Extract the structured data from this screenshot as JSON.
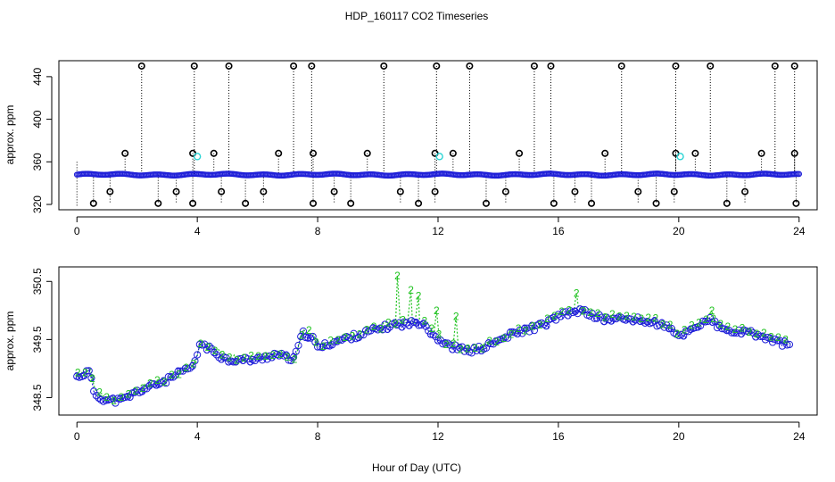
{
  "chart_data": [
    {
      "type": "scatter",
      "title": "HDP_160117  CO2 Timeseries",
      "xlabel": "",
      "ylabel": "approx. ppm",
      "xlim": [
        -0.6,
        24.6
      ],
      "ylim": [
        315,
        455
      ],
      "x_ticks": [
        0,
        4,
        8,
        12,
        16,
        20,
        24
      ],
      "y_ticks": [
        320,
        360,
        400,
        440
      ],
      "grid": false,
      "colors": {
        "baseline": "#1f1fd8",
        "spike": "#000000",
        "highlight": "#2ad4d4",
        "connector": "#000000"
      },
      "baseline_segments": [
        {
          "x": [
            0.0,
            24.0
          ],
          "y": [
            348,
            348
          ]
        }
      ],
      "high_spikes": [
        2.15,
        3.9,
        5.05,
        7.2,
        7.8,
        10.2,
        11.95,
        13.05,
        15.2,
        15.75,
        18.1,
        19.9,
        21.05,
        23.2,
        23.85
      ],
      "mid_spikes": [
        1.6,
        3.85,
        4.55,
        6.7,
        7.85,
        9.65,
        11.9,
        12.5,
        14.7,
        17.55,
        19.9,
        20.55,
        22.75,
        23.85
      ],
      "low_spikes": [
        0.55,
        1.1,
        2.7,
        3.3,
        3.85,
        4.8,
        5.6,
        6.2,
        7.85,
        8.55,
        9.1,
        10.75,
        11.35,
        11.9,
        13.6,
        14.25,
        15.85,
        16.55,
        17.1,
        18.65,
        19.25,
        19.85,
        21.6,
        22.2,
        23.9
      ],
      "spike_values": {
        "high": 450,
        "mid": 368,
        "low_upper": 332,
        "low_lower": 321
      },
      "highlight_points": [
        {
          "x": 4.0,
          "y": 365
        },
        {
          "x": 12.05,
          "y": 365
        },
        {
          "x": 20.05,
          "y": 365
        }
      ]
    },
    {
      "type": "scatter",
      "title": "",
      "xlabel": "Hour of Day (UTC)",
      "ylabel": "approx. ppm",
      "xlim": [
        -0.6,
        24.6
      ],
      "ylim": [
        348.2,
        350.75
      ],
      "x_ticks": [
        0,
        4,
        8,
        12,
        16,
        20,
        24
      ],
      "y_ticks": [
        348.5,
        349.5,
        350.5
      ],
      "grid": false,
      "series": [
        {
          "name": "3",
          "color": "#1f1fd8",
          "marker": "circle-and-label"
        },
        {
          "name": "2",
          "color": "#22c322",
          "marker": "label"
        }
      ],
      "trend_knots": [
        [
          0.0,
          348.85
        ],
        [
          0.4,
          348.95
        ],
        [
          0.6,
          348.55
        ],
        [
          1.0,
          348.45
        ],
        [
          1.5,
          348.45
        ],
        [
          2.0,
          348.6
        ],
        [
          3.0,
          348.8
        ],
        [
          3.9,
          349.05
        ],
        [
          4.1,
          349.45
        ],
        [
          4.5,
          349.3
        ],
        [
          5.0,
          349.15
        ],
        [
          6.0,
          349.15
        ],
        [
          6.6,
          349.25
        ],
        [
          7.2,
          349.15
        ],
        [
          7.5,
          349.6
        ],
        [
          7.8,
          349.55
        ],
        [
          8.0,
          349.35
        ],
        [
          8.5,
          349.45
        ],
        [
          9.5,
          349.6
        ],
        [
          10.5,
          349.75
        ],
        [
          11.5,
          349.8
        ],
        [
          11.8,
          349.6
        ],
        [
          12.3,
          349.4
        ],
        [
          13.0,
          349.3
        ],
        [
          13.5,
          349.35
        ],
        [
          14.5,
          349.6
        ],
        [
          15.5,
          349.75
        ],
        [
          16.0,
          349.9
        ],
        [
          16.7,
          350.0
        ],
        [
          17.5,
          349.85
        ],
        [
          18.5,
          349.85
        ],
        [
          19.5,
          349.75
        ],
        [
          20.0,
          349.55
        ],
        [
          20.5,
          349.7
        ],
        [
          21.0,
          349.85
        ],
        [
          21.5,
          349.65
        ],
        [
          22.5,
          349.6
        ],
        [
          23.0,
          349.5
        ],
        [
          23.7,
          349.4
        ]
      ],
      "series2_spikes": [
        {
          "x": 10.65,
          "y": 350.6
        },
        {
          "x": 11.1,
          "y": 350.35
        },
        {
          "x": 11.35,
          "y": 350.25
        },
        {
          "x": 11.95,
          "y": 350.0
        },
        {
          "x": 12.6,
          "y": 349.9
        },
        {
          "x": 16.6,
          "y": 350.3
        },
        {
          "x": 21.1,
          "y": 350.0
        }
      ]
    }
  ]
}
